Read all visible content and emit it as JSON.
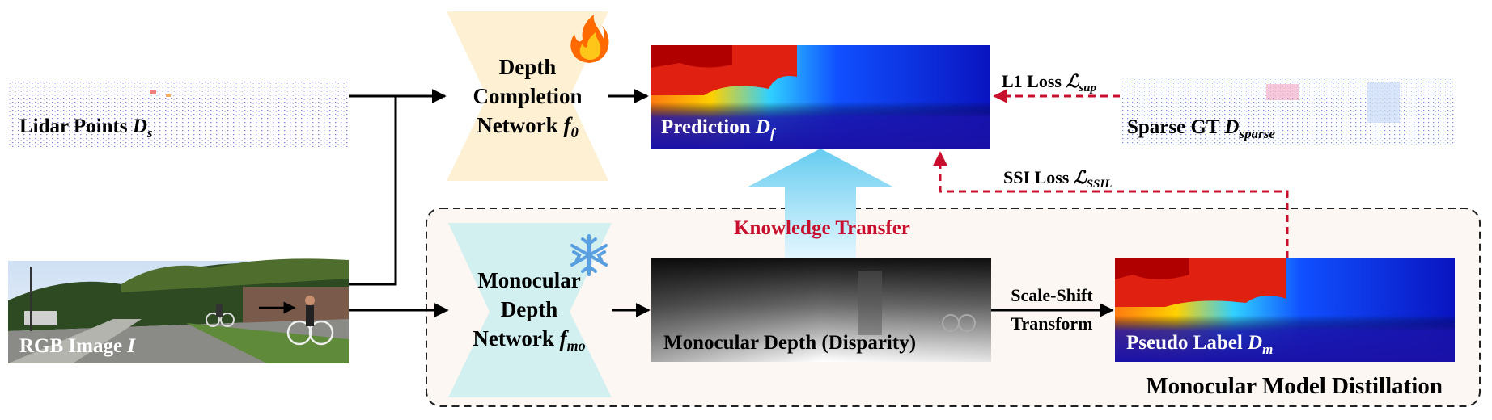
{
  "inputs": {
    "lidar": {
      "label": "Lidar Points ",
      "symbol": "D",
      "sub": "s"
    },
    "rgb": {
      "label": "RGB Image ",
      "symbol": "I"
    }
  },
  "networks": {
    "completion": {
      "line1": "Depth",
      "line2": "Completion",
      "line3": "Network ",
      "symbol": "f",
      "sub": "θ",
      "badge": "fire-icon"
    },
    "monocular": {
      "line1": "Monocular",
      "line2": "Depth",
      "line3": "Network ",
      "symbol": "f",
      "sub": "mo",
      "badge": "snowflake-icon"
    }
  },
  "outputs": {
    "prediction": {
      "label": "Prediction  ",
      "symbol": "D",
      "sub": "f"
    },
    "mono_depth": {
      "label": "Monocular Depth (Disparity)"
    },
    "pseudo": {
      "label": "Pseudo Label  ",
      "symbol": "D",
      "sub": "m"
    },
    "sparse_gt": {
      "label": "Sparse GT ",
      "symbol": "D",
      "sub": "sparse"
    }
  },
  "losses": {
    "l1": {
      "label": "L1 Loss ",
      "symbol": "ℒ",
      "sub": "sup"
    },
    "ssi": {
      "label": "SSI Loss ",
      "symbol": "ℒ",
      "sub": "SSIL"
    }
  },
  "transforms": {
    "scale_shift_1": "Scale-Shift",
    "scale_shift_2": "Transform"
  },
  "knowledge_transfer": "Knowledge Transfer",
  "distillation_title": "Monocular Model Distillation",
  "colors": {
    "completion_box": "#fdf0d3",
    "monocular_box": "#d3f0f0",
    "distill_bg": "#fcf7f3",
    "loss_arrow": "#c8102e",
    "knowledge_text": "#c8102e",
    "depth_dark": "#1a12a8"
  }
}
